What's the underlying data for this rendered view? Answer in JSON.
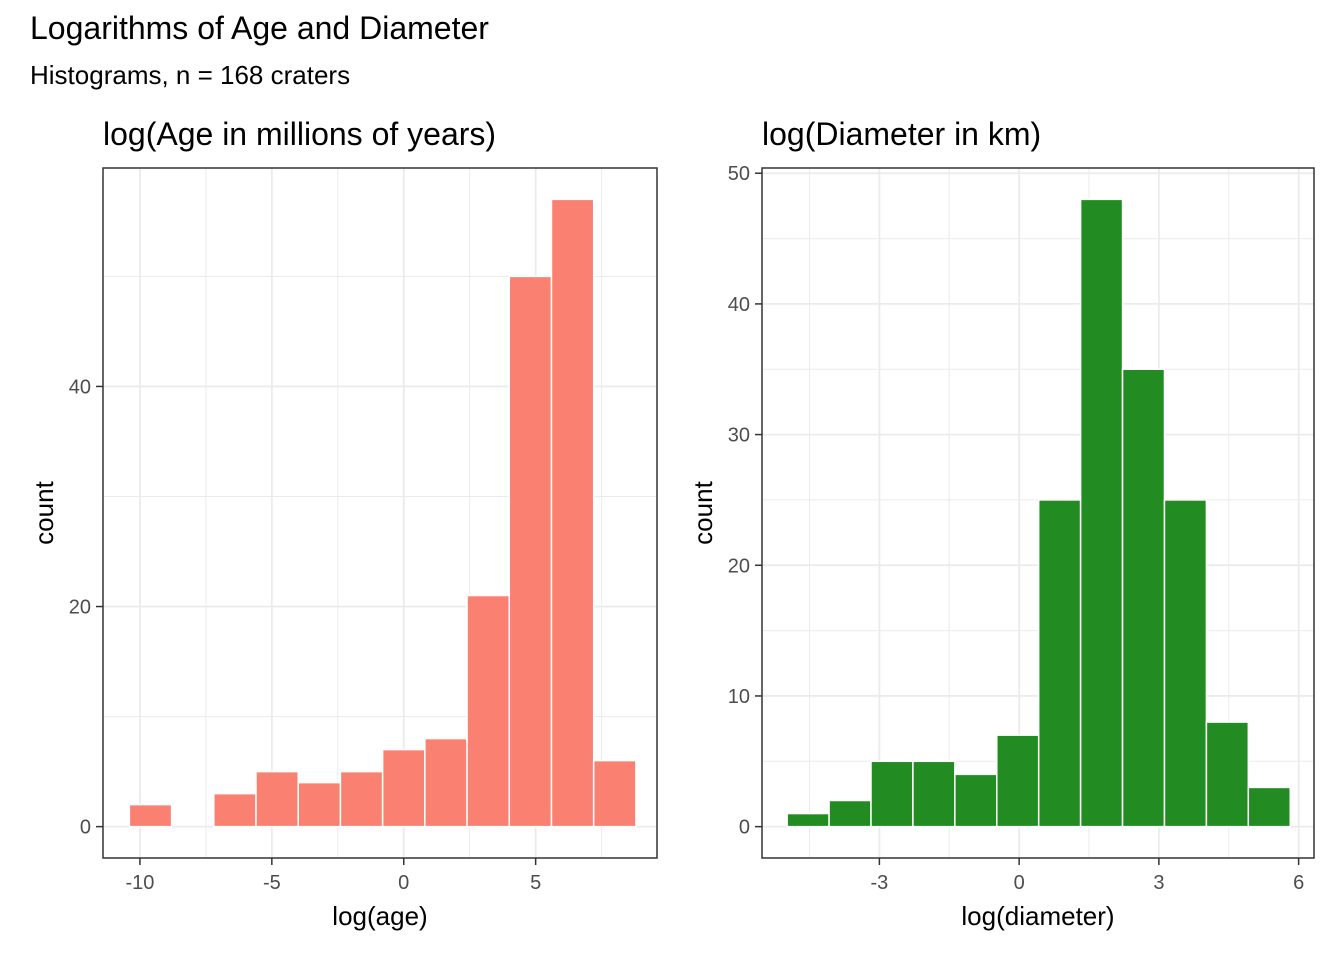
{
  "title": "Logarithms of Age and Diameter",
  "subtitle": "Histograms, n = 168 craters",
  "chart_data": [
    {
      "type": "bar",
      "title": "log(Age in millions of years)",
      "xlabel": "log(age)",
      "ylabel": "count",
      "fill_color": "#fa8072",
      "edge_color": "#ffffff",
      "xlim": [
        -11.4,
        9.6
      ],
      "ylim": [
        -2.85,
        59.85
      ],
      "x_ticks": [
        -10,
        -5,
        0,
        5
      ],
      "y_ticks": [
        0,
        20,
        40
      ],
      "grid": true,
      "bins": [
        {
          "x0": -10.4,
          "x1": -8.8,
          "count": 2
        },
        {
          "x0": -8.8,
          "x1": -7.2,
          "count": 0
        },
        {
          "x0": -7.2,
          "x1": -5.6,
          "count": 3
        },
        {
          "x0": -5.6,
          "x1": -4.0,
          "count": 5
        },
        {
          "x0": -4.0,
          "x1": -2.4,
          "count": 4
        },
        {
          "x0": -2.4,
          "x1": -0.8,
          "count": 5
        },
        {
          "x0": -0.8,
          "x1": 0.8,
          "count": 7
        },
        {
          "x0": 0.8,
          "x1": 2.4,
          "count": 8
        },
        {
          "x0": 2.4,
          "x1": 4.0,
          "count": 21
        },
        {
          "x0": 4.0,
          "x1": 5.6,
          "count": 50
        },
        {
          "x0": 5.6,
          "x1": 7.2,
          "count": 57
        },
        {
          "x0": 7.2,
          "x1": 8.8,
          "count": 6
        }
      ]
    },
    {
      "type": "bar",
      "title": "log(Diameter in km)",
      "xlabel": "log(diameter)",
      "ylabel": "count",
      "fill_color": "#228b22",
      "edge_color": "#ffffff",
      "xlim": [
        -5.52,
        6.33
      ],
      "ylim": [
        -2.4,
        50.4
      ],
      "x_ticks": [
        -3,
        0,
        3,
        6
      ],
      "y_ticks": [
        0,
        10,
        20,
        30,
        40,
        50
      ],
      "grid": true,
      "bins": [
        {
          "x0": -4.98,
          "x1": -4.08,
          "count": 1
        },
        {
          "x0": -4.08,
          "x1": -3.18,
          "count": 2
        },
        {
          "x0": -3.18,
          "x1": -2.28,
          "count": 5
        },
        {
          "x0": -2.28,
          "x1": -1.38,
          "count": 5
        },
        {
          "x0": -1.38,
          "x1": -0.48,
          "count": 4
        },
        {
          "x0": -0.48,
          "x1": 0.42,
          "count": 7
        },
        {
          "x0": 0.42,
          "x1": 1.32,
          "count": 25
        },
        {
          "x0": 1.32,
          "x1": 2.22,
          "count": 48
        },
        {
          "x0": 2.22,
          "x1": 3.12,
          "count": 35
        },
        {
          "x0": 3.12,
          "x1": 4.02,
          "count": 25
        },
        {
          "x0": 4.02,
          "x1": 4.92,
          "count": 8
        },
        {
          "x0": 4.92,
          "x1": 5.82,
          "count": 3
        }
      ]
    }
  ]
}
